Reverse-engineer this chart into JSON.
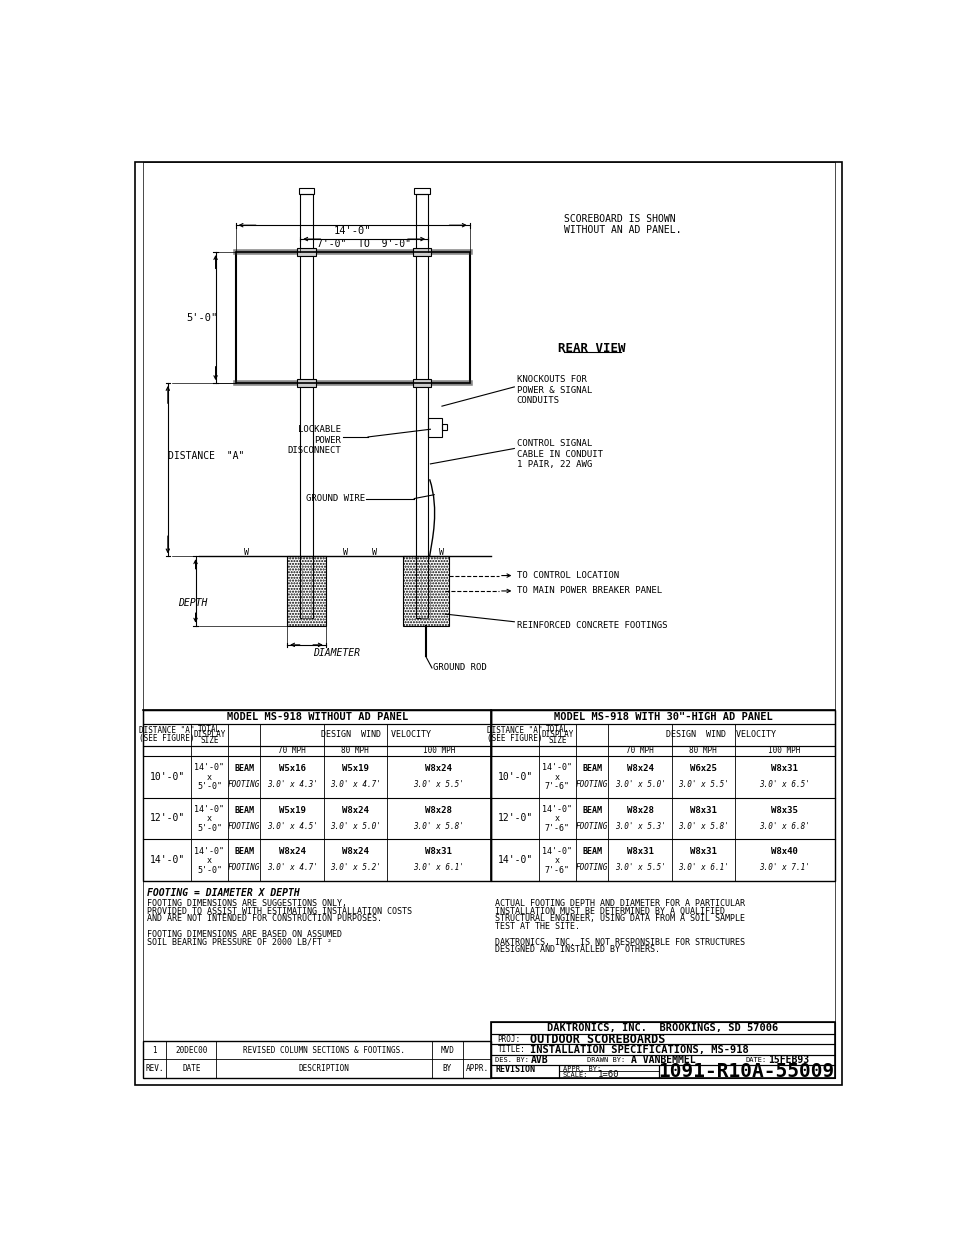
{
  "bg_color": "#ffffff",
  "line_color": "#000000",
  "text_color": "#000000",
  "title_block": {
    "company": "DAKTRONICS, INC.  BROOKINGS, SD 57006",
    "proj": "OUTDOOR SCOREBOARDS",
    "title": "INSTALLATION SPECIFICATIONS, MS-918",
    "des_by": "AVB",
    "drawn_by": "A VANBEMMEL",
    "date": "15FEB93",
    "drawing_no": "1091-R10A-55009",
    "scale": "1=60",
    "revision_label": "REVISION",
    "appr_by": "APPR. BY:"
  },
  "notes_left": [
    "FOOTING DIMENSIONS ARE SUGGESTIONS ONLY,",
    "PROVIDED TO ASSIST WITH ESTIMATING INSTALLATION COSTS",
    "AND ARE NOT INTENDED FOR CONSTRUCTION PURPOSES.",
    "",
    "FOOTING DIMENSIONS ARE BASED ON ASSUMED",
    "SOIL BEARING PRESSURE OF 2000 LB/FT ²"
  ],
  "notes_right": [
    "ACTUAL FOOTING DEPTH AND DIAMETER FOR A PARTICULAR",
    "INSTALLATION MUST BE DETERMINED BY A QUALIFIED",
    "STRUCTURAL ENGINEER, USING DATA FROM A SOIL SAMPLE",
    "TEST AT THE SITE.",
    "",
    "DAKTRONICS, INC. IS NOT RESPONSIBLE FOR STRUCTURES",
    "DESIGNED AND INSTALLED BY OTHERS."
  ],
  "footing_eq": "FOOTING = DIAMETER X DEPTH",
  "table1_title": "MODEL MS-918 WITHOUT AD PANEL",
  "table2_title": "MODEL MS-918 WITH 30\"-HIGH AD PANEL",
  "table1_data": [
    [
      "10'-0\"",
      "14'-0\"\nx\n5'-0\"",
      "BEAM\nFOOTING",
      "W5x16\n3.0' x 4.3'",
      "W5x19\n3.0' x 4.7'",
      "W8x24\n3.0' x 5.5'"
    ],
    [
      "12'-0\"",
      "14'-0\"\nx\n5'-0\"",
      "BEAM\nFOOTING",
      "W5x19\n3.0' x 4.5'",
      "W8x24\n3.0' x 5.0'",
      "W8x28\n3.0' x 5.8'"
    ],
    [
      "14'-0\"",
      "14'-0\"\nx\n5'-0\"",
      "BEAM\nFOOTING",
      "W8x24\n3.0' x 4.7'",
      "W8x24\n3.0' x 5.2'",
      "W8x31\n3.0' x 6.1'"
    ]
  ],
  "table2_data": [
    [
      "10'-0\"",
      "14'-0\"\nx\n7'-6\"",
      "BEAM\nFOOTING",
      "W8x24\n3.0' x 5.0'",
      "W6x25\n3.0' x 5.5'",
      "W8x31\n3.0' x 6.5'"
    ],
    [
      "12'-0\"",
      "14'-0\"\nx\n7'-6\"",
      "BEAM\nFOOTING",
      "W8x28\n3.0' x 5.3'",
      "W8x31\n3.0' x 5.8'",
      "W8x35\n3.0' x 6.8'"
    ],
    [
      "14'-0\"",
      "14'-0\"\nx\n7'-6\"",
      "BEAM\nFOOTING",
      "W8x31\n3.0' x 5.5'",
      "W8x31\n3.0' x 6.1'",
      "W8x40\n3.0' x 7.1'"
    ]
  ],
  "dim_14ft": "14'-0\"",
  "dim_7to9": "7'-0\"  TO  9'-0\"",
  "dim_5ft": "5'-0\"",
  "rear_view": "REAR VIEW",
  "knockouts": "KNOCKOUTS FOR\nPOWER & SIGNAL\nCONDUITS",
  "lockable": "LOCKABLE\nPOWER\nDISCONNECT",
  "control_signal": "CONTROL SIGNAL\nCABLE IN CONDUIT\n1 PAIR, 22 AWG",
  "ground_wire": "GROUND WIRE",
  "scoreboard_note": "SCOREBOARD IS SHOWN\nWITHOUT AN AD PANEL.",
  "to_control": "TO CONTROL LOCATION",
  "to_breaker": "TO MAIN POWER BREAKER PANEL",
  "footings_label": "REINFORCED CONCRETE FOOTINGS",
  "ground_rod": "GROUND ROD",
  "distance_a": "DISTANCE  \"A\"",
  "depth_label": "DEPTH",
  "diameter_label": "DIAMETER"
}
